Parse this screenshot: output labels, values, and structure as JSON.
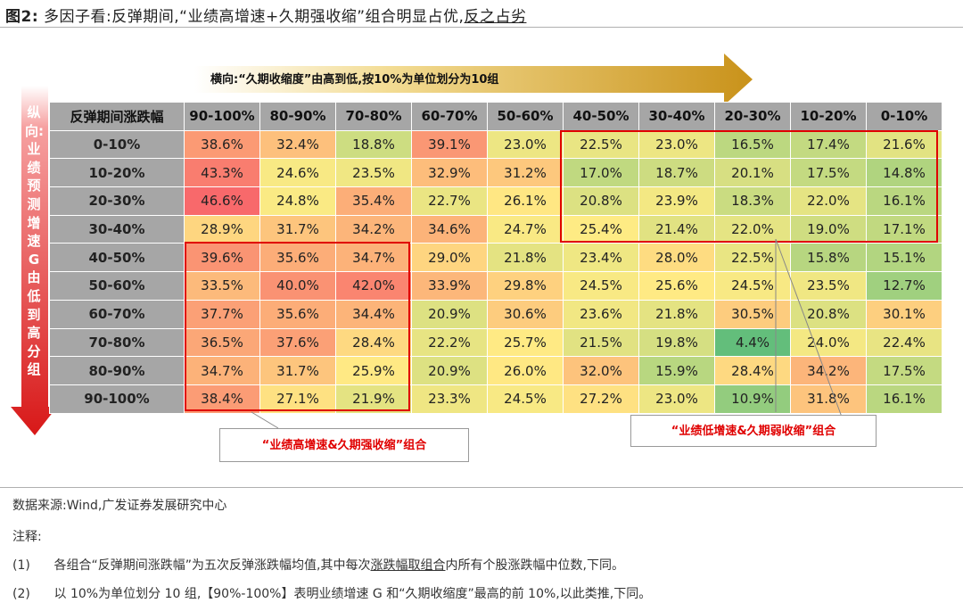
{
  "title": {
    "prefix": "图2:",
    "main": "多因子看:反弹期间,“业绩高增速+久期强收缩”组合明显占优,",
    "tail": "反之占劣"
  },
  "top_arrow_label": "横向:“久期收缩度”由高到低,按10%为单位划分为10组",
  "left_arrow_label": "纵向:业绩预测增速G由低到高分组",
  "colors": {
    "red_box": "#e00000",
    "header_bg": "#a6a6a6",
    "arrow_gold": "#d9a520",
    "arrow_red": "#e02020"
  },
  "chart_data": {
    "type": "heatmap",
    "corner_label": "反弹期间涨跌幅",
    "columns": [
      "90-100%",
      "80-90%",
      "70-80%",
      "60-70%",
      "50-60%",
      "40-50%",
      "30-40%",
      "20-30%",
      "10-20%",
      "0-10%"
    ],
    "rows": [
      "0-10%",
      "10-20%",
      "20-30%",
      "30-40%",
      "40-50%",
      "50-60%",
      "60-70%",
      "70-80%",
      "80-90%",
      "90-100%"
    ],
    "values": [
      [
        38.6,
        32.4,
        18.8,
        39.1,
        23.0,
        22.5,
        23.0,
        16.5,
        17.4,
        21.6
      ],
      [
        43.3,
        24.6,
        23.5,
        32.9,
        31.2,
        17.0,
        18.7,
        20.1,
        17.5,
        14.8
      ],
      [
        46.6,
        24.8,
        35.4,
        22.7,
        26.1,
        20.8,
        23.9,
        18.3,
        22.0,
        16.1
      ],
      [
        28.9,
        31.7,
        34.2,
        34.6,
        24.7,
        25.4,
        21.4,
        22.0,
        19.0,
        17.1
      ],
      [
        39.6,
        35.6,
        34.7,
        29.0,
        21.8,
        23.4,
        28.0,
        22.5,
        15.8,
        15.1
      ],
      [
        33.5,
        40.0,
        42.0,
        33.9,
        29.8,
        24.5,
        25.6,
        24.5,
        23.5,
        12.7
      ],
      [
        37.7,
        35.6,
        34.4,
        20.9,
        30.6,
        23.6,
        21.8,
        30.5,
        20.8,
        30.1
      ],
      [
        36.5,
        37.6,
        28.4,
        22.2,
        25.7,
        21.5,
        19.8,
        4.4,
        24.0,
        22.4
      ],
      [
        34.7,
        31.7,
        25.9,
        20.9,
        26.0,
        32.0,
        15.9,
        28.4,
        34.2,
        17.5
      ],
      [
        38.4,
        27.1,
        21.9,
        23.3,
        24.5,
        27.2,
        23.0,
        10.9,
        31.8,
        16.1
      ]
    ],
    "unit": "%"
  },
  "callouts": {
    "strong": "“业绩高增速&久期强收缩”组合",
    "weak": "“业绩低增速&久期弱收缩”组合"
  },
  "footer": {
    "source": "数据来源:Wind,广发证券发展研究中心",
    "notes_label": "注释:",
    "note1_num": "(1)",
    "note1_a": "各组合“反弹期间涨跌幅”为五次反弹涨跌幅均值,其中每次",
    "note1_ul": "涨跌幅取组合",
    "note1_b": "内所有个股涨跌幅中位数,下同。",
    "note2_num": "(2)",
    "note2": "以 10%为单位划分 10 组,【90%-100%】表明业绩增速 G 和“久期收缩度”最高的前 10%,以此类推,下同。"
  }
}
